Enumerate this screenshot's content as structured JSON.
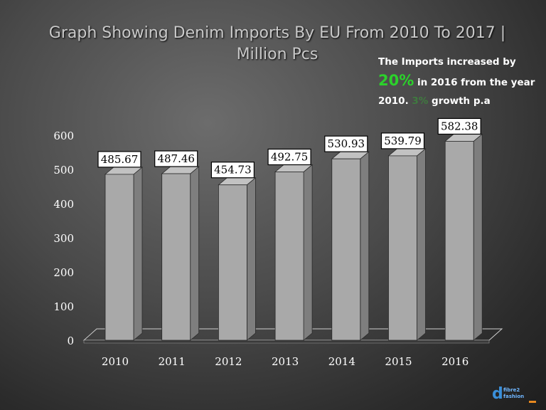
{
  "title_line1": "Graph Showing Denim Imports By EU From 2010 To 2017 |",
  "title_line2": "Million Pcs",
  "note": {
    "line1": "The Imports increased by",
    "pct": "20%",
    "line2": "in 2016 from the year",
    "line3": "2010.",
    "growth_pct": "3%",
    "growth_text": "growth p.a"
  },
  "logo": {
    "icon": "fibre2fashion-logo-icon",
    "text_top": "fibre2",
    "text_bottom": "fashion"
  },
  "colors": {
    "bar_front": "#a9a9a9",
    "bar_side": "#7e7e7e",
    "bar_top": "#c2c2c2",
    "accent_green": "#2bd12b"
  },
  "chart_data": {
    "type": "bar",
    "title": "Graph Showing Denim Imports By EU From 2010 To 2017 | Million Pcs",
    "categories": [
      "2010",
      "2011",
      "2012",
      "2013",
      "2014",
      "2015",
      "2016"
    ],
    "values": [
      485.67,
      487.46,
      454.73,
      492.75,
      530.93,
      539.79,
      582.38
    ],
    "value_labels": [
      "485.67",
      "487.46",
      "454.73",
      "492.75",
      "530.93",
      "539.79",
      "582.38"
    ],
    "ylim": [
      0,
      600
    ],
    "yticks": [
      0,
      100,
      200,
      300,
      400,
      500,
      600
    ],
    "ytick_labels": [
      "0",
      "100",
      "200",
      "300",
      "400",
      "500",
      "600"
    ],
    "xlabel": "",
    "ylabel": "",
    "grid": false,
    "legend": "none"
  }
}
